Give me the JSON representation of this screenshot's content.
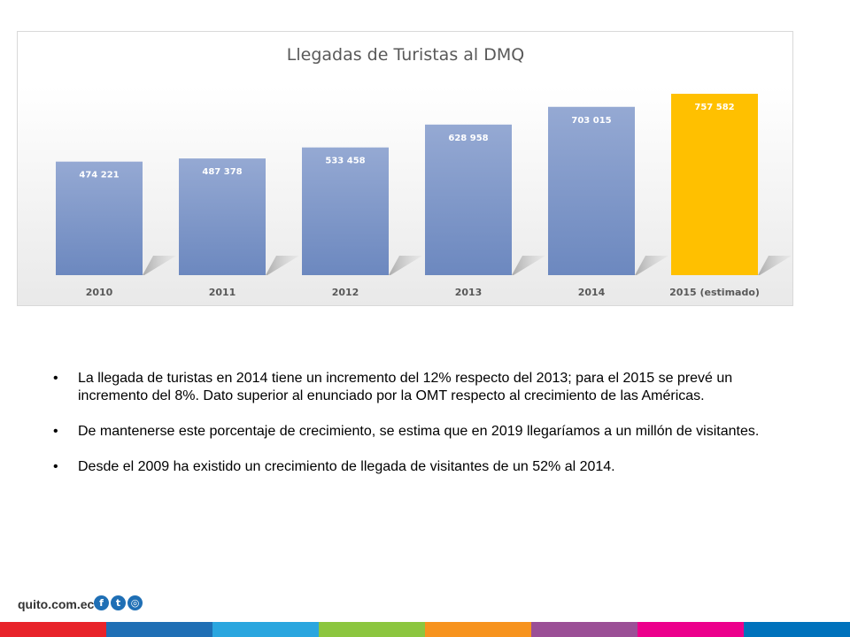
{
  "chart_data": {
    "type": "bar",
    "title": "Llegadas de Turistas al DMQ",
    "categories": [
      "2010",
      "2011",
      "2012",
      "2013",
      "2014",
      "2015 (estimado)"
    ],
    "values": [
      474221,
      487378,
      533458,
      628958,
      703015,
      757582
    ],
    "data_labels": [
      "474 221",
      "487 378",
      "533 458",
      "628 958",
      "703 015",
      "757 582"
    ],
    "colors": [
      "#7a94c6",
      "#7a94c6",
      "#7a94c6",
      "#7a94c6",
      "#7a94c6",
      "#ffc000"
    ],
    "grid": false
  },
  "bullets": [
    "La llegada de turistas en 2014 tiene un incremento del 12% respecto del 2013; para el 2015 se prevé un incremento del 8%.  Dato superior al enunciado por la OMT respecto al crecimiento de las Américas.",
    "De mantenerse este porcentaje de crecimiento, se estima que en 2019 llegaríamos a un millón de visitantes.",
    "Desde el 2009 ha existido un crecimiento de llegada de visitantes de un 52% al 2014."
  ],
  "bullet_symbol": "•",
  "footer": {
    "site": "quito.com.ec",
    "icons": [
      "facebook-icon",
      "twitter-icon",
      "instagram-icon"
    ],
    "stripe_colors": [
      "#e8232a",
      "#1f6fb5",
      "#2aa6df",
      "#8cc63f",
      "#f7931e",
      "#9b4f96",
      "#ec008c",
      "#0072bc"
    ]
  }
}
